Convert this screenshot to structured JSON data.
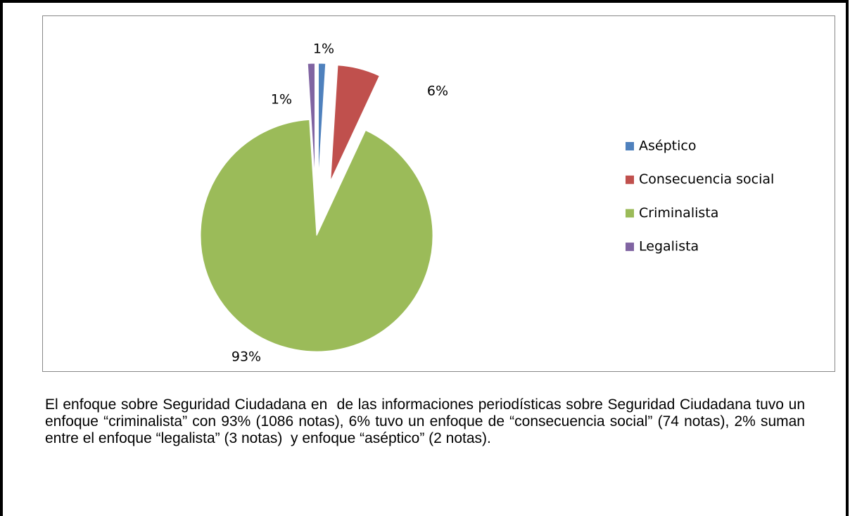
{
  "chart_data": {
    "type": "pie",
    "categories": [
      "Aséptico",
      "Consecuencia social",
      "Criminalista",
      "Legalista"
    ],
    "values": [
      1,
      6,
      93,
      1
    ],
    "value_labels": [
      "1%",
      "6%",
      "93%",
      "1%"
    ],
    "colors": [
      "#4f81bd",
      "#c0504d",
      "#9bbb59",
      "#8064a2"
    ],
    "legend": "right"
  },
  "caption": "El enfoque sobre Seguridad Ciudadana en  de las informaciones periodísticas sobre Seguridad Ciudadana tuvo un enfoque “criminalista” con 93% (1086 notas), 6% tuvo un enfoque de “consecuencia social” (74 notas), 2% suman entre el enfoque “legalista” (3 notas)  y enfoque “aséptico” (2 notas)."
}
